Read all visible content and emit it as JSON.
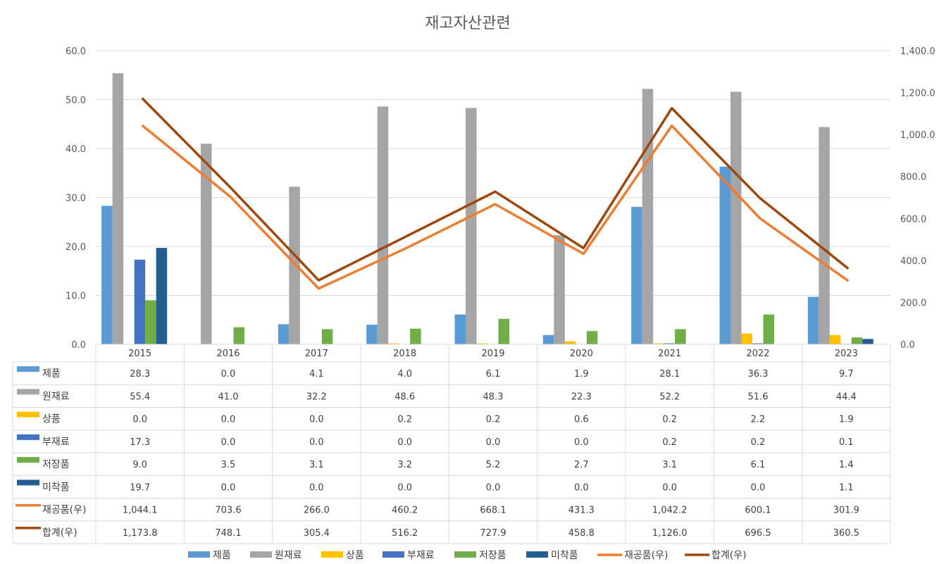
{
  "chart_data": {
    "type": "bar",
    "title": "재고자산관련",
    "categories": [
      "2015",
      "2016",
      "2017",
      "2018",
      "2019",
      "2020",
      "2021",
      "2022",
      "2023"
    ],
    "y_left": {
      "ticks": [
        "0.0",
        "10.0",
        "20.0",
        "30.0",
        "40.0",
        "50.0",
        "60.0"
      ],
      "ylim": [
        0,
        60
      ]
    },
    "y_right": {
      "ticks": [
        "0.0",
        "200.0",
        "400.0",
        "600.0",
        "800.0",
        "1,000.0",
        "1,200.0",
        "1,400.0"
      ],
      "ylim": [
        0,
        1400
      ]
    },
    "grid": true,
    "legend_position": "bottom",
    "data_table": true,
    "series": [
      {
        "name": "제품",
        "kind": "bar",
        "axis": "left",
        "color": "#5b9bd5",
        "values": [
          28.3,
          0.0,
          4.1,
          4.0,
          6.1,
          1.9,
          28.1,
          36.3,
          9.7
        ],
        "labels": [
          "28.3",
          "0.0",
          "4.1",
          "4.0",
          "6.1",
          "1.9",
          "28.1",
          "36.3",
          "9.7"
        ]
      },
      {
        "name": "원재료",
        "kind": "bar",
        "axis": "left",
        "color": "#a5a5a5",
        "values": [
          55.4,
          41.0,
          32.2,
          48.6,
          48.3,
          22.3,
          52.2,
          51.6,
          44.4
        ],
        "labels": [
          "55.4",
          "41.0",
          "32.2",
          "48.6",
          "48.3",
          "22.3",
          "52.2",
          "51.6",
          "44.4"
        ]
      },
      {
        "name": "상품",
        "kind": "bar",
        "axis": "left",
        "color": "#ffc000",
        "values": [
          0.0,
          0.0,
          0.0,
          0.2,
          0.2,
          0.6,
          0.2,
          2.2,
          1.9
        ],
        "labels": [
          "0.0",
          "0.0",
          "0.0",
          "0.2",
          "0.2",
          "0.6",
          "0.2",
          "2.2",
          "1.9"
        ]
      },
      {
        "name": "부재료",
        "kind": "bar",
        "axis": "left",
        "color": "#4472c4",
        "values": [
          17.3,
          0.0,
          0.0,
          0.0,
          0.0,
          0.0,
          0.2,
          0.2,
          0.1
        ],
        "labels": [
          "17.3",
          "0.0",
          "0.0",
          "0.0",
          "0.0",
          "0.0",
          "0.2",
          "0.2",
          "0.1"
        ]
      },
      {
        "name": "저장품",
        "kind": "bar",
        "axis": "left",
        "color": "#70ad47",
        "values": [
          9.0,
          3.5,
          3.1,
          3.2,
          5.2,
          2.7,
          3.1,
          6.1,
          1.4
        ],
        "labels": [
          "9.0",
          "3.5",
          "3.1",
          "3.2",
          "5.2",
          "2.7",
          "3.1",
          "6.1",
          "1.4"
        ]
      },
      {
        "name": "미착품",
        "kind": "bar",
        "axis": "left",
        "color": "#255e91",
        "values": [
          19.7,
          0.0,
          0.0,
          0.0,
          0.0,
          0.0,
          0.0,
          0.0,
          1.1
        ],
        "labels": [
          "19.7",
          "0.0",
          "0.0",
          "0.0",
          "0.0",
          "0.0",
          "0.0",
          "0.0",
          "1.1"
        ]
      },
      {
        "name": "재공품(우)",
        "kind": "line",
        "axis": "right",
        "color": "#ed7d31",
        "values": [
          1044.1,
          703.6,
          266.0,
          460.2,
          668.1,
          431.3,
          1042.2,
          600.1,
          301.9
        ],
        "labels": [
          "1,044.1",
          "703.6",
          "266.0",
          "460.2",
          "668.1",
          "431.3",
          "1,042.2",
          "600.1",
          "301.9"
        ]
      },
      {
        "name": "합계(우)",
        "kind": "line",
        "axis": "right",
        "color": "#9e480e",
        "values": [
          1173.8,
          748.1,
          305.4,
          516.2,
          727.9,
          458.8,
          1126.0,
          696.5,
          360.5
        ],
        "labels": [
          "1,173.8",
          "748.1",
          "305.4",
          "516.2",
          "727.9",
          "458.8",
          "1,126.0",
          "696.5",
          "360.5"
        ]
      }
    ]
  }
}
